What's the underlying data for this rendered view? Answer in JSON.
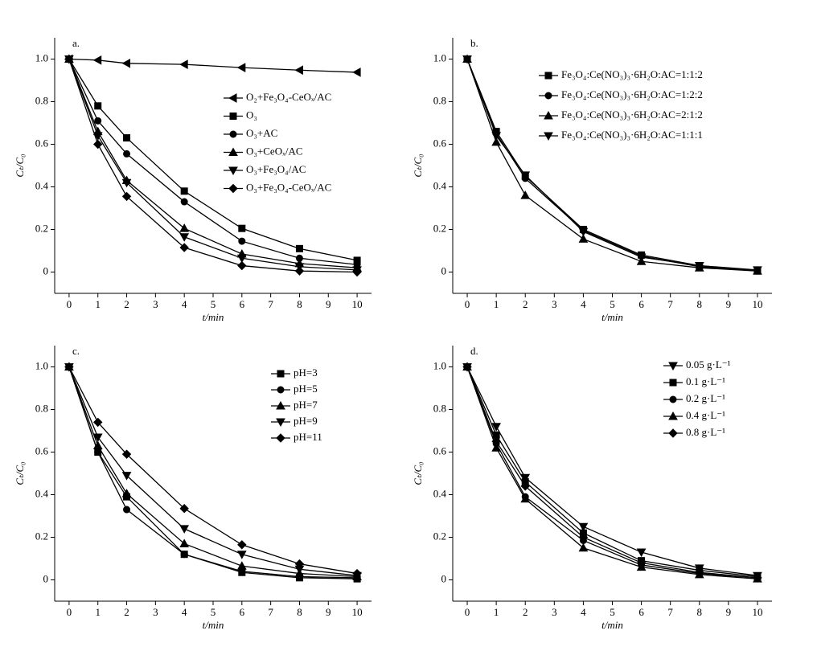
{
  "chart_data": [
    {
      "type": "line",
      "panel_label": "a.",
      "x_label": "t/min",
      "y_label": "Cₜ/C₀",
      "x": [
        0,
        1,
        2,
        4,
        6,
        8,
        10
      ],
      "xlim": [
        -0.5,
        10.5
      ],
      "xticks": [
        0,
        1,
        2,
        3,
        4,
        5,
        6,
        7,
        8,
        9,
        10
      ],
      "ylim": [
        -0.1,
        1.1
      ],
      "yticks": [
        0,
        0.2,
        0.4,
        0.6,
        0.8,
        {
          "value": 1,
          "label": "1.0"
        }
      ],
      "series": [
        {
          "name": "O₂+Fe₃O₄-CeOₓ/AC",
          "marker": "triangle-left",
          "color": "#000000",
          "values": [
            1,
            0.995,
            0.98,
            0.975,
            0.96,
            0.948,
            0.938
          ]
        },
        {
          "name": "O₃",
          "marker": "square",
          "color": "#000000",
          "values": [
            1,
            0.78,
            0.63,
            0.38,
            0.205,
            0.11,
            0.055
          ]
        },
        {
          "name": "O₃+AC",
          "marker": "circle",
          "color": "#000000",
          "values": [
            1,
            0.71,
            0.555,
            0.33,
            0.145,
            0.065,
            0.035
          ]
        },
        {
          "name": "O₃+CeOₓ/AC",
          "marker": "triangle-up",
          "color": "#000000",
          "values": [
            1,
            0.66,
            0.43,
            0.205,
            0.085,
            0.04,
            0.02
          ]
        },
        {
          "name": "O₃+Fe₃O₄/AC",
          "marker": "triangle-down",
          "color": "#000000",
          "values": [
            1,
            0.64,
            0.42,
            0.165,
            0.065,
            0.025,
            0.01
          ]
        },
        {
          "name": "O₃+Fe₃O₄-CeOₓ/AC",
          "marker": "diamond",
          "color": "#000000",
          "values": [
            1,
            0.6,
            0.355,
            0.115,
            0.03,
            0.005,
            0
          ]
        }
      ]
    },
    {
      "type": "line",
      "panel_label": "b.",
      "x_label": "t/min",
      "y_label": "Cₜ/C₀",
      "x": [
        0,
        1,
        2,
        4,
        6,
        8,
        10
      ],
      "xlim": [
        -0.5,
        10.5
      ],
      "xticks": [
        0,
        1,
        2,
        3,
        4,
        5,
        6,
        7,
        8,
        9,
        10
      ],
      "ylim": [
        -0.1,
        1.1
      ],
      "yticks": [
        0,
        0.2,
        0.4,
        0.6,
        0.8,
        {
          "value": 1,
          "label": "1.0"
        }
      ],
      "series": [
        {
          "name": "Fe₃O₄:Ce(NO₃)₃·6H₂O:AC=1:1:2",
          "marker": "square",
          "color": "#000000",
          "values": [
            1,
            0.66,
            0.45,
            0.2,
            0.08,
            0.03,
            0.005
          ]
        },
        {
          "name": "Fe₃O₄:Ce(NO₃)₃·6H₂O:AC=1:2:2",
          "marker": "circle",
          "color": "#000000",
          "values": [
            1,
            0.65,
            0.44,
            0.195,
            0.075,
            0.025,
            0.005
          ]
        },
        {
          "name": "Fe₃O₄:Ce(NO₃)₃·6H₂O:AC=2:1:2",
          "marker": "triangle-up",
          "color": "#000000",
          "values": [
            1,
            0.61,
            0.36,
            0.155,
            0.05,
            0.02,
            0.005
          ]
        },
        {
          "name": "Fe₃O₄:Ce(NO₃)₃·6H₂O:AC=1:1:1",
          "marker": "triangle-down",
          "color": "#000000",
          "values": [
            1,
            0.64,
            0.455,
            0.19,
            0.07,
            0.03,
            0.01
          ]
        }
      ]
    },
    {
      "type": "line",
      "panel_label": "c.",
      "x_label": "t/min",
      "y_label": "Cₜ/C₀",
      "x": [
        0,
        1,
        2,
        4,
        6,
        8,
        10
      ],
      "xlim": [
        -0.5,
        10.5
      ],
      "xticks": [
        0,
        1,
        2,
        3,
        4,
        5,
        6,
        7,
        8,
        9,
        10
      ],
      "ylim": [
        -0.1,
        1.1
      ],
      "yticks": [
        0,
        0.2,
        0.4,
        0.6,
        0.8,
        {
          "value": 1,
          "label": "1.0"
        }
      ],
      "series": [
        {
          "name": "pH=3",
          "marker": "square",
          "color": "#000000",
          "values": [
            1,
            0.6,
            0.39,
            0.12,
            0.035,
            0.01,
            0.005
          ]
        },
        {
          "name": "pH=5",
          "marker": "circle",
          "color": "#000000",
          "values": [
            1,
            0.6,
            0.33,
            0.12,
            0.04,
            0.015,
            0.01
          ]
        },
        {
          "name": "pH=7",
          "marker": "triangle-up",
          "color": "#000000",
          "values": [
            1,
            0.63,
            0.405,
            0.17,
            0.065,
            0.03,
            0.015
          ]
        },
        {
          "name": "pH=9",
          "marker": "triangle-down",
          "color": "#000000",
          "values": [
            1,
            0.67,
            0.49,
            0.24,
            0.12,
            0.05,
            0.02
          ]
        },
        {
          "name": "pH=11",
          "marker": "diamond",
          "color": "#000000",
          "values": [
            1,
            0.74,
            0.59,
            0.335,
            0.165,
            0.075,
            0.03
          ]
        }
      ]
    },
    {
      "type": "line",
      "panel_label": "d.",
      "x_label": "t/min",
      "y_label": "Cₜ/C₀",
      "x": [
        0,
        1,
        2,
        4,
        6,
        8,
        10
      ],
      "xlim": [
        -0.5,
        10.5
      ],
      "xticks": [
        0,
        1,
        2,
        3,
        4,
        5,
        6,
        7,
        8,
        9,
        10
      ],
      "ylim": [
        -0.1,
        1.1
      ],
      "yticks": [
        0,
        0.2,
        0.4,
        0.6,
        0.8,
        {
          "value": 1,
          "label": "1.0"
        }
      ],
      "series": [
        {
          "name": "0.05 g·L⁻¹",
          "marker": "triangle-down",
          "color": "#000000",
          "values": [
            1,
            0.72,
            0.48,
            0.25,
            0.13,
            0.055,
            0.02
          ]
        },
        {
          "name": "0.1 g·L⁻¹",
          "marker": "square",
          "color": "#000000",
          "values": [
            1,
            0.68,
            0.46,
            0.22,
            0.09,
            0.045,
            0.015
          ]
        },
        {
          "name": "0.2 g·L⁻¹",
          "marker": "circle",
          "color": "#000000",
          "values": [
            1,
            0.64,
            0.39,
            0.185,
            0.07,
            0.03,
            0.01
          ]
        },
        {
          "name": "0.4 g·L⁻¹",
          "marker": "triangle-up",
          "color": "#000000",
          "values": [
            1,
            0.62,
            0.38,
            0.15,
            0.06,
            0.025,
            0.005
          ]
        },
        {
          "name": "0.8 g·L⁻¹",
          "marker": "diamond",
          "color": "#000000",
          "values": [
            1,
            0.65,
            0.44,
            0.2,
            0.08,
            0.035,
            0.01
          ]
        }
      ]
    }
  ]
}
